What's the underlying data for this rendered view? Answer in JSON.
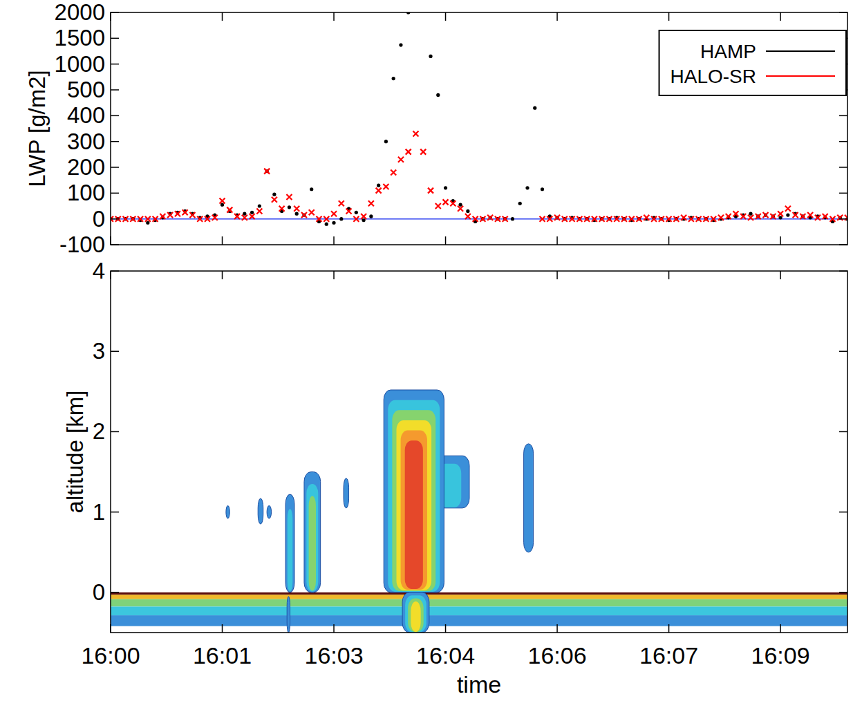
{
  "chart_data": [
    {
      "type": "scatter",
      "ylabel": "LWP [g/m2]",
      "x": [
        0,
        0.1,
        0.2,
        0.3,
        0.4,
        0.5,
        0.6,
        0.7,
        0.8,
        0.9,
        1,
        1.1,
        1.2,
        1.3,
        1.4,
        1.5,
        1.6,
        1.7,
        1.8,
        1.9,
        2,
        2.1,
        2.2,
        2.3,
        2.4,
        2.5,
        2.6,
        2.7,
        2.8,
        2.9,
        3,
        3.1,
        3.2,
        3.3,
        3.4,
        3.5,
        3.6,
        3.7,
        3.8,
        3.9,
        4,
        4.1,
        4.2,
        4.3,
        4.4,
        4.5,
        4.6,
        4.7,
        4.8,
        4.9,
        5,
        5.1,
        5.2,
        5.3,
        5.4,
        5.5,
        5.6,
        5.7,
        5.8,
        5.9,
        6,
        6.1,
        6.2,
        6.3,
        6.4,
        6.5,
        6.6,
        6.7,
        6.8,
        6.9,
        7,
        7.1,
        7.2,
        7.3,
        7.4,
        7.5,
        7.6,
        7.7,
        7.8,
        7.9,
        8,
        8.1,
        8.2,
        8.3,
        8.4,
        8.5,
        8.6,
        8.7,
        8.8,
        8.9,
        9,
        9.1,
        9.2,
        9.3,
        9.4,
        9.5,
        9.6,
        9.7,
        9.8,
        9.9
      ],
      "series": [
        {
          "name": "HAMP",
          "color": "#000000",
          "marker": "dot",
          "values": [
            0,
            0,
            0,
            0,
            -5,
            -15,
            -5,
            5,
            20,
            25,
            30,
            20,
            5,
            10,
            15,
            55,
            30,
            15,
            20,
            25,
            50,
            185,
            95,
            30,
            45,
            20,
            15,
            115,
            -10,
            -20,
            -15,
            0,
            40,
            25,
            -5,
            10,
            130,
            300,
            720,
            1370,
            2000,
            null,
            null,
            1150,
            480,
            120,
            70,
            55,
            30,
            -10,
            0,
            5,
            0,
            0,
            0,
            60,
            120,
            430,
            115,
            10,
            5,
            0,
            5,
            0,
            0,
            -5,
            0,
            0,
            5,
            0,
            -5,
            0,
            0,
            5,
            0,
            -5,
            0,
            0,
            5,
            0,
            0,
            -5,
            0,
            5,
            10,
            15,
            20,
            10,
            15,
            10,
            5,
            15,
            20,
            10,
            5,
            10,
            5,
            -10,
            5,
            0
          ]
        },
        {
          "name": "HALO-SR",
          "color": "#ff0000",
          "marker": "x",
          "values": [
            0,
            0,
            0,
            0,
            0,
            0,
            0,
            10,
            15,
            20,
            25,
            15,
            0,
            0,
            5,
            70,
            35,
            10,
            5,
            10,
            30,
            185,
            75,
            40,
            85,
            40,
            15,
            25,
            0,
            0,
            20,
            60,
            30,
            0,
            10,
            60,
            110,
            125,
            180,
            230,
            260,
            330,
            260,
            110,
            50,
            65,
            60,
            40,
            10,
            0,
            0,
            5,
            0,
            0,
            null,
            null,
            null,
            null,
            0,
            0,
            5,
            0,
            0,
            0,
            0,
            0,
            0,
            0,
            0,
            0,
            0,
            0,
            5,
            0,
            0,
            0,
            0,
            5,
            0,
            0,
            0,
            0,
            5,
            10,
            20,
            10,
            5,
            10,
            15,
            10,
            20,
            40,
            15,
            10,
            15,
            5,
            10,
            0,
            5,
            5
          ]
        }
      ],
      "xlim": [
        0,
        9.9
      ],
      "xticks": [
        {
          "value": 0,
          "label": "16:00"
        },
        {
          "value": 1.5,
          "label": "16:01"
        },
        {
          "value": 3,
          "label": "16:03"
        },
        {
          "value": 4.5,
          "label": "16:04"
        },
        {
          "value": 6,
          "label": "16:06"
        },
        {
          "value": 7.5,
          "label": "16:07"
        },
        {
          "value": 9,
          "label": "16:09"
        }
      ],
      "ylim": [
        -100,
        2000
      ],
      "yticks": [
        -100,
        0,
        100,
        200,
        300,
        400,
        500,
        1000,
        1500,
        2000
      ],
      "tick_labels": "y",
      "legend": "top-right"
    },
    {
      "type": "contour",
      "xlabel": "time",
      "ylabel": "altitude [km]",
      "xlim": [
        0,
        9.9
      ],
      "xticks": [
        {
          "value": 0,
          "label": "16:00"
        },
        {
          "value": 1.5,
          "label": "16:01"
        },
        {
          "value": 3,
          "label": "16:03"
        },
        {
          "value": 4.5,
          "label": "16:04"
        },
        {
          "value": 6,
          "label": "16:06"
        },
        {
          "value": 7.5,
          "label": "16:07"
        },
        {
          "value": 9,
          "label": "16:09"
        }
      ],
      "ylim": [
        -0.5,
        4
      ],
      "yticks": [
        0,
        1,
        2,
        3,
        4
      ],
      "surface_echo": {
        "start": 0,
        "end": 9.9,
        "top": 0,
        "bottom": -0.42
      },
      "clouds": [
        {
          "start": 1.55,
          "end": 1.6,
          "base": 0.92,
          "top": 1.08,
          "level": 1
        },
        {
          "start": 1.98,
          "end": 2.05,
          "base": 0.85,
          "top": 1.17,
          "level": 1
        },
        {
          "start": 2.1,
          "end": 2.16,
          "base": 0.92,
          "top": 1.08,
          "level": 1
        },
        {
          "start": 2.35,
          "end": 2.47,
          "base": 0,
          "top": 1.22,
          "level": 2
        },
        {
          "start": 2.37,
          "end": 2.41,
          "base": -0.5,
          "top": -0.05,
          "level": 1
        },
        {
          "start": 2.6,
          "end": 2.82,
          "base": 0,
          "top": 1.5,
          "level": 3
        },
        {
          "start": 3.13,
          "end": 3.2,
          "base": 1.05,
          "top": 1.42,
          "level": 1
        },
        {
          "start": 4.3,
          "end": 4.82,
          "base": 1.05,
          "top": 1.7,
          "level": 2
        },
        {
          "start": 3.67,
          "end": 4.48,
          "base": 0,
          "top": 2.52,
          "level": 6
        },
        {
          "start": 3.92,
          "end": 4.28,
          "base": -0.5,
          "top": 0,
          "level": 4
        },
        {
          "start": 5.55,
          "end": 5.68,
          "base": 0.5,
          "top": 1.85,
          "level": 1
        }
      ]
    }
  ]
}
